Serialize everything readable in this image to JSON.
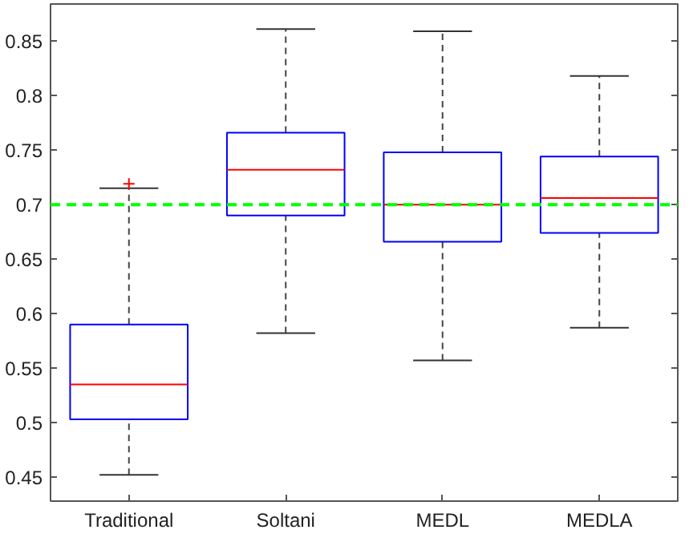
{
  "chart_data": {
    "type": "box",
    "categories": [
      "Traditional",
      "Soltani",
      "MEDL",
      "MEDLA"
    ],
    "series": [
      {
        "color": "#0000ff",
        "boxes": [
          {
            "low": 0.452,
            "q1": 0.503,
            "median": 0.535,
            "q3": 0.59,
            "high": 0.715,
            "outliers": [
              0.719
            ]
          },
          {
            "low": 0.582,
            "q1": 0.69,
            "median": 0.732,
            "q3": 0.766,
            "high": 0.861
          },
          {
            "low": 0.557,
            "q1": 0.666,
            "median": 0.7,
            "q3": 0.748,
            "high": 0.859
          },
          {
            "low": 0.587,
            "q1": 0.674,
            "median": 0.706,
            "q3": 0.744,
            "high": 0.818
          }
        ]
      }
    ],
    "ylim": [
      0.428,
      0.884
    ],
    "yticks": [
      0.45,
      0.5,
      0.55,
      0.6,
      0.65,
      0.7,
      0.75,
      0.8,
      0.85
    ],
    "ref_lines": [
      {
        "axis": "y",
        "value": 0.7,
        "color": "#00ff00",
        "line_style": "dashed"
      }
    ],
    "grid": false,
    "marker": "cross"
  }
}
